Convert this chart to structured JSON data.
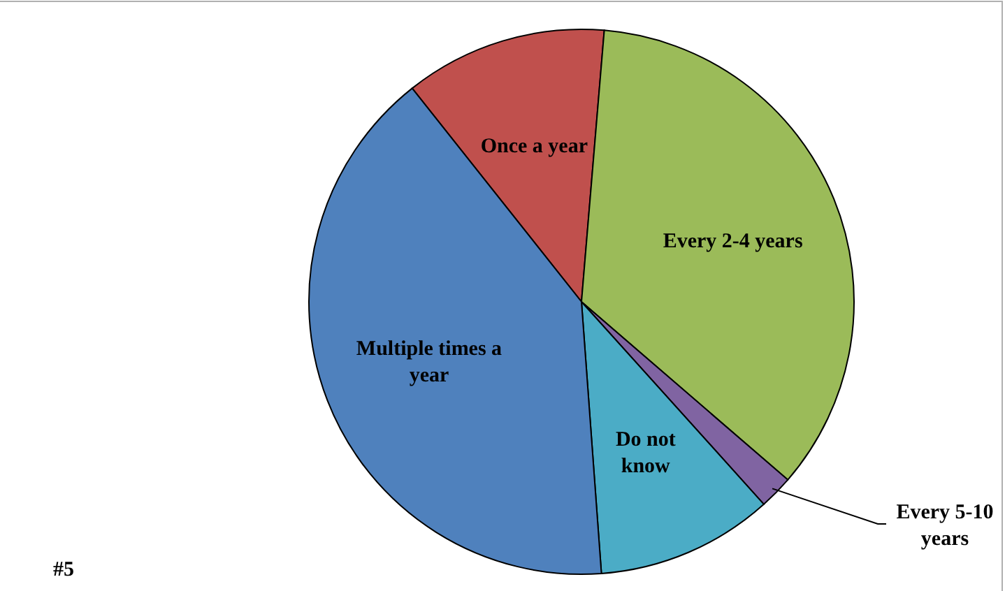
{
  "chart_data": {
    "type": "pie",
    "categories": [
      "Once a year",
      "Every 2-4 years",
      "Every 5-10 years",
      "Do not know",
      "Multiple times a year"
    ],
    "values": [
      12,
      35,
      2,
      10.5,
      40.5
    ],
    "colors": [
      "#c0504d",
      "#9bbb59",
      "#8064a2",
      "#4bacc6",
      "#4f81bd"
    ],
    "annotations": [
      "#5"
    ]
  }
}
